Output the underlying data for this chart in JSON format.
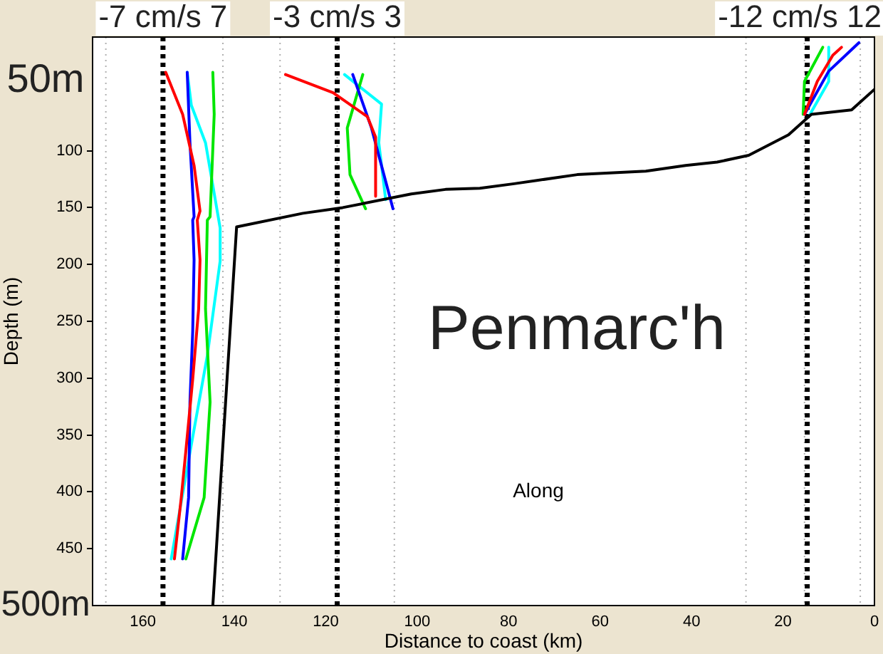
{
  "chart_data": {
    "type": "line",
    "xlabel": "Distance to coast (km)",
    "ylabel": "Depth (m)",
    "annotations": [
      "Penmarc'h",
      "Along",
      "50m",
      "500m"
    ],
    "xlim": [
      171,
      0
    ],
    "xticks": [
      160,
      140,
      120,
      100,
      80,
      60,
      40,
      20,
      0
    ],
    "ylim": [
      500,
      0
    ],
    "yticks": [
      100,
      150,
      200,
      250,
      300,
      350,
      400,
      450
    ],
    "grid": false,
    "legend": false,
    "marker": "none",
    "line_style": "solid",
    "ref_lines": [
      {
        "axis": "x",
        "value": 168.1,
        "color": "#b0b0b0",
        "line_style": "dotted"
      },
      {
        "axis": "x",
        "value": 142.5,
        "color": "#b0b0b0",
        "line_style": "dotted"
      },
      {
        "axis": "x",
        "value": 130,
        "color": "#b0b0b0",
        "line_style": "dotted"
      },
      {
        "axis": "x",
        "value": 117.5,
        "color": "#b0b0b0",
        "line_style": "dotted"
      },
      {
        "axis": "x",
        "value": 105,
        "color": "#b0b0b0",
        "line_style": "dotted"
      },
      {
        "axis": "x",
        "value": 28.1,
        "color": "#b0b0b0",
        "line_style": "dotted"
      },
      {
        "axis": "x",
        "value": 15.3,
        "color": "#b0b0b0",
        "line_style": "dotted"
      },
      {
        "axis": "x",
        "value": 3.1,
        "color": "#b0b0b0",
        "line_style": "dotted"
      },
      {
        "axis": "x",
        "value": 155.6,
        "label": "-7 cm/s 7",
        "color": "#000000",
        "line_style": "dashed"
      },
      {
        "axis": "x",
        "value": 117.5,
        "label": "-3 cm/s 3",
        "color": "#000000",
        "line_style": "dashed"
      },
      {
        "axis": "x",
        "value": 14.7,
        "label": "-12 cm/s 12",
        "color": "#000000",
        "line_style": "dashed"
      }
    ],
    "series": [
      {
        "color": "#000000",
        "x": [
          144.7,
          139.5,
          125,
          116.3,
          101.3,
          93.8,
          86.3,
          78.8,
          65,
          50,
          41.3,
          34.4,
          27.5,
          18.8,
          13.8,
          5,
          0
        ],
        "values": [
          500,
          167,
          155,
          150,
          138,
          134,
          133,
          129,
          121,
          118,
          113,
          110,
          104,
          86,
          68,
          64,
          46
        ]
      },
      {
        "color": "#ff0000",
        "x": [
          155,
          151.3,
          148.8,
          147.5,
          148.1,
          147.5,
          147.8,
          149.1,
          150.6,
          151.6,
          153.1
        ],
        "values": [
          31,
          68,
          113,
          153,
          161,
          196,
          239,
          301,
          364,
          405,
          459
        ]
      },
      {
        "color": "#0000ff",
        "x": [
          150.3,
          149.7,
          148.8,
          149.1,
          148.8,
          149.1,
          149.7,
          150,
          151.3
        ],
        "values": [
          31,
          93,
          158,
          161,
          196,
          259,
          321,
          405,
          459
        ]
      },
      {
        "color": "#00e600",
        "x": [
          144.7,
          144.4,
          145.3,
          145.9,
          146.3,
          145.3,
          146.6,
          150.6
        ],
        "values": [
          31,
          68,
          158,
          161,
          239,
          321,
          405,
          459
        ]
      },
      {
        "color": "#00ffff",
        "x": [
          150.3,
          149.4,
          146.3,
          143.1,
          143.1,
          145.9,
          149.6,
          153.8
        ],
        "values": [
          31,
          60,
          93,
          168,
          197,
          280,
          363,
          459
        ]
      },
      {
        "color": "#ff0000",
        "x": [
          128.8,
          118.4,
          110.9,
          109.1,
          109.1
        ],
        "values": [
          33,
          49,
          70,
          88,
          140
        ]
      },
      {
        "color": "#0000ff",
        "x": [
          114.1,
          110,
          105.3
        ],
        "values": [
          33,
          80,
          151
        ]
      },
      {
        "color": "#00e600",
        "x": [
          111.9,
          115.3,
          114.7,
          111.3
        ],
        "values": [
          33,
          80,
          121,
          151
        ]
      },
      {
        "color": "#00ffff",
        "x": [
          115.9,
          107.8,
          108.4,
          106.9
        ],
        "values": [
          33,
          59,
          93,
          143
        ]
      },
      {
        "color": "#ff0000",
        "x": [
          7.2,
          9.1,
          12.5,
          15.3
        ],
        "values": [
          9,
          16,
          39,
          68
        ]
      },
      {
        "color": "#0000ff",
        "x": [
          3.4,
          10,
          15.3
        ],
        "values": [
          5,
          30,
          68
        ]
      },
      {
        "color": "#00e600",
        "x": [
          11.3,
          15.3,
          15.6
        ],
        "values": [
          9,
          39,
          68
        ]
      },
      {
        "color": "#00ffff",
        "x": [
          10,
          10,
          14.1
        ],
        "values": [
          9,
          39,
          68
        ]
      }
    ]
  }
}
